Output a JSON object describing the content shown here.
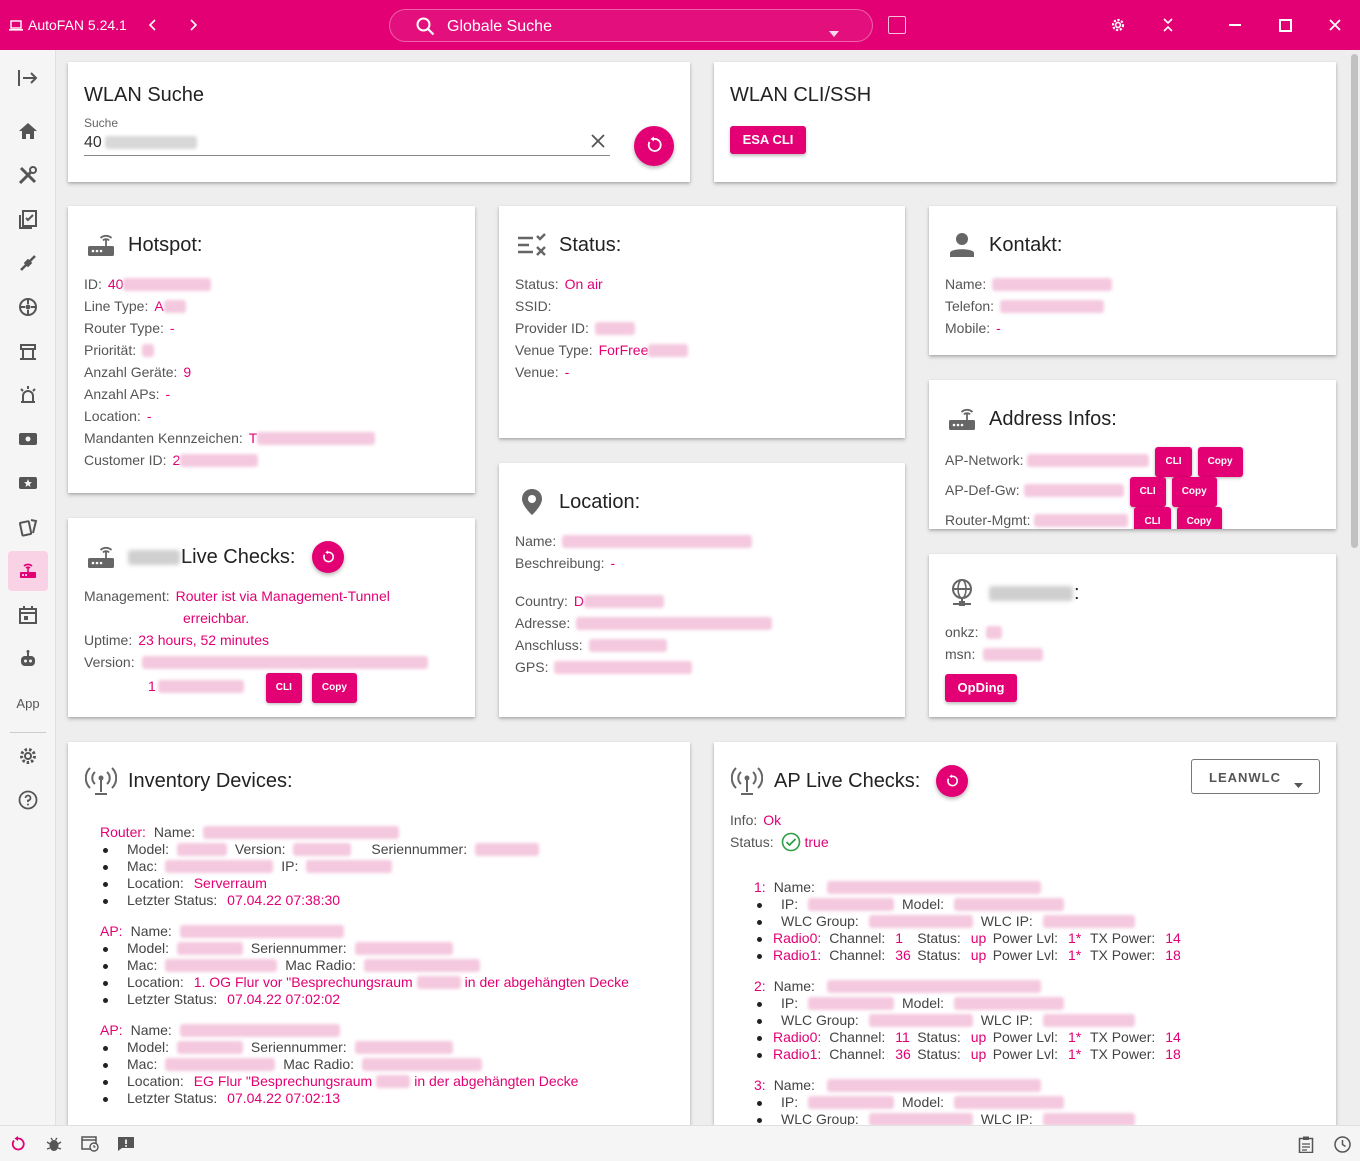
{
  "app": {
    "title": "AutoFAN 5.24.1"
  },
  "search": {
    "placeholder": "Globale Suche"
  },
  "sidebar": {
    "app_label": "App"
  },
  "wlan_search": {
    "title": "WLAN Suche",
    "field_label": "Suche",
    "value": "40"
  },
  "wlan_cli": {
    "title": "WLAN CLI/SSH",
    "button": "ESA CLI"
  },
  "hotspot": {
    "title": "Hotspot:",
    "rows": [
      {
        "label": "ID:",
        "value": "40"
      },
      {
        "label": "Line Type:",
        "value": "A"
      },
      {
        "label": "Router Type:",
        "value": "-"
      },
      {
        "label": "Priorität:",
        "value": ""
      },
      {
        "label": "Anzahl Geräte:",
        "value": "9"
      },
      {
        "label": "Anzahl APs:",
        "value": "-"
      },
      {
        "label": "Location:",
        "value": "-"
      },
      {
        "label": "Mandanten Kennzeichen:",
        "value": "T"
      },
      {
        "label": "Customer ID:",
        "value": "2"
      }
    ]
  },
  "status": {
    "title": "Status:",
    "rows": [
      {
        "label": "Status:",
        "value": "On air"
      },
      {
        "label": "SSID:",
        "value": ""
      },
      {
        "label": "Provider ID:",
        "value": ""
      },
      {
        "label": "Venue Type:",
        "value": "ForFree"
      },
      {
        "label": "Venue:",
        "value": "-"
      }
    ]
  },
  "kontakt": {
    "title": "Kontakt:",
    "rows": [
      {
        "label": "Name:",
        "value": ""
      },
      {
        "label": "Telefon:",
        "value": ""
      },
      {
        "label": "Mobile:",
        "value": "-"
      }
    ]
  },
  "address": {
    "title": "Address Infos:",
    "rows": [
      {
        "label": "AP-Network:"
      },
      {
        "label": "AP-Def-Gw:"
      },
      {
        "label": "Router-Mgmt:"
      }
    ],
    "cli": "CLI",
    "copy": "Copy"
  },
  "live": {
    "title": "Live Checks:",
    "management_label": "Management:",
    "management_value_1": "Router ist via Management-Tunnel",
    "management_value_2": "erreichbar.",
    "uptime_label": "Uptime:",
    "uptime_value": "23 hours, 52 minutes",
    "version_label": "Version:",
    "version_value_2": "1",
    "cli": "CLI",
    "copy": "Copy"
  },
  "location": {
    "title": "Location:",
    "rows_a": [
      {
        "label": "Name:",
        "value": ""
      },
      {
        "label": "Beschreibung:",
        "value": "-"
      }
    ],
    "rows_b": [
      {
        "label": "Country:",
        "value": "D"
      },
      {
        "label": "Adresse:",
        "value": ""
      },
      {
        "label": "Anschluss:",
        "value": ""
      },
      {
        "label": "GPS:",
        "value": ""
      }
    ]
  },
  "line": {
    "title": ":",
    "onkz_label": "onkz:",
    "msn_label": "msn:",
    "button": "OpDing"
  },
  "inventory": {
    "title": "Inventory Devices:",
    "router": {
      "head": "Router:",
      "name_label": "Name:",
      "model_label": "Model:",
      "version_label": "Version:",
      "serial_label": "Seriennummer:",
      "mac_label": "Mac:",
      "ip_label": "IP:",
      "location_label": "Location:",
      "location_value": "Serverraum",
      "status_label": "Letzter Status:",
      "status_value": "07.04.22 07:38:30"
    },
    "ap1": {
      "head": "AP:",
      "name_label": "Name:",
      "model_label": "Model:",
      "serial_label": "Seriennummer:",
      "mac_label": "Mac:",
      "macradio_label": "Mac Radio:",
      "location_label": "Location:",
      "location_value_a": "1. OG Flur vor \"Besprechungsraum",
      "location_value_b": "in der abgehängten Decke",
      "status_label": "Letzter Status:",
      "status_value": "07.04.22 07:02:02"
    },
    "ap2": {
      "head": "AP:",
      "name_label": "Name:",
      "model_label": "Model:",
      "serial_label": "Seriennummer:",
      "mac_label": "Mac:",
      "macradio_label": "Mac Radio:",
      "location_label": "Location:",
      "location_value_a": "EG Flur \"Besprechungsraum",
      "location_value_b": "in der abgehängten Decke",
      "status_label": "Letzter Status:",
      "status_value": "07.04.22 07:02:13"
    }
  },
  "ap_live": {
    "title": "AP Live Checks:",
    "dropdown": "LEANWLC",
    "info_label": "Info:",
    "info_value": "Ok",
    "status_label": "Status:",
    "status_value": "true",
    "labels": {
      "name": "Name:",
      "ip": "IP:",
      "model": "Model:",
      "wlc_group": "WLC Group:",
      "wlc_ip": "WLC IP:",
      "channel": "Channel:",
      "status": "Status:",
      "power_lvl": "Power Lvl:",
      "tx_power": "TX Power:",
      "radio0": "Radio0:",
      "radio1": "Radio1:"
    },
    "aps": [
      {
        "num": "1:",
        "r0": {
          "channel": "1",
          "status": "up",
          "power": "1*",
          "tx": "14"
        },
        "r1": {
          "channel": "36",
          "status": "up",
          "power": "1*",
          "tx": "18"
        }
      },
      {
        "num": "2:",
        "r0": {
          "channel": "11",
          "status": "up",
          "power": "1*",
          "tx": "14"
        },
        "r1": {
          "channel": "36",
          "status": "up",
          "power": "1*",
          "tx": "18"
        }
      },
      {
        "num": "3:"
      }
    ]
  },
  "colors": {
    "brand": "#e20074",
    "status_ok": "#2e9e47"
  }
}
